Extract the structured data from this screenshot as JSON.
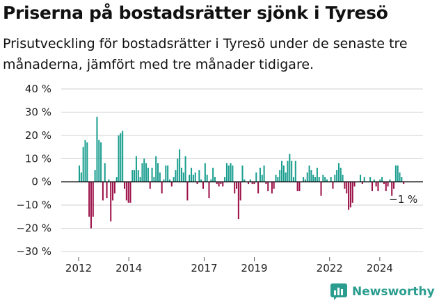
{
  "title": "Priserna på bostadsrätter sjönk i Tyresö",
  "subtitle": "Prisutveckling för bostadsrätter i Tyresö under de senaste tre månaderna, jämfört med tre månader tidigare.",
  "brand": "Newsworthy",
  "colors": {
    "positive": "#1a9e8f",
    "negative": "#9c1148",
    "grid": "#d0d0d0",
    "brand": "#2a9d8f"
  },
  "chart_data": {
    "type": "bar",
    "ylim": [
      -30,
      40
    ],
    "y_ticks": [
      -30,
      -20,
      -10,
      0,
      10,
      20,
      30,
      40
    ],
    "y_tick_labels": [
      "−30 %",
      "−20 %",
      "−10 %",
      "0 %",
      "10 %",
      "20 %",
      "30 %",
      "40 %"
    ],
    "x_tick_labels": [
      {
        "label": "2012",
        "date": "2012-01"
      },
      {
        "label": "2014",
        "date": "2014-01"
      },
      {
        "label": "2017",
        "date": "2017-01"
      },
      {
        "label": "2019",
        "date": "2019-01"
      },
      {
        "label": "2022",
        "date": "2022-01"
      },
      {
        "label": "2024",
        "date": "2024-01"
      }
    ],
    "start_date": "2012-01",
    "end_date": "2025-01",
    "values": [
      7,
      4,
      15,
      18,
      17,
      -15,
      -20,
      -15,
      5,
      28,
      18,
      17,
      -8,
      8,
      -7,
      1,
      -17,
      -8,
      -5,
      2,
      20,
      21,
      22,
      -3,
      -8,
      -9,
      -9,
      5,
      5,
      11,
      5,
      2,
      8,
      10,
      8,
      6,
      -3,
      6,
      2,
      11,
      8,
      4,
      -5,
      1,
      7,
      7,
      1,
      -2,
      2,
      5,
      10,
      14,
      6,
      4,
      11,
      -8,
      3,
      6,
      3,
      4,
      -1,
      5,
      1,
      -3,
      8,
      3,
      -7,
      1,
      6,
      2,
      -1,
      -2,
      -1,
      -2,
      2,
      8,
      7,
      8,
      7,
      -5,
      -3,
      -16,
      -8,
      7,
      1,
      0,
      -1,
      1,
      -1,
      -1,
      4,
      -5,
      6,
      3,
      7,
      -1,
      -4,
      0,
      -5,
      -3,
      3,
      2,
      5,
      9,
      7,
      4,
      9,
      12,
      9,
      2,
      9,
      -4,
      -4,
      0,
      2,
      1,
      4,
      7,
      5,
      3,
      2,
      6,
      2,
      -6,
      3,
      2,
      1,
      0,
      2,
      -3,
      3,
      5,
      8,
      6,
      3,
      -3,
      -5,
      -12,
      -11,
      -9,
      -2,
      0,
      0,
      3,
      -1,
      2,
      0,
      0,
      2,
      -4,
      1,
      -2,
      -4,
      1,
      2,
      -1,
      -4,
      -2,
      1,
      -6,
      -3,
      7,
      7,
      4,
      2,
      -1
    ]
  },
  "last_label": "−1 %"
}
